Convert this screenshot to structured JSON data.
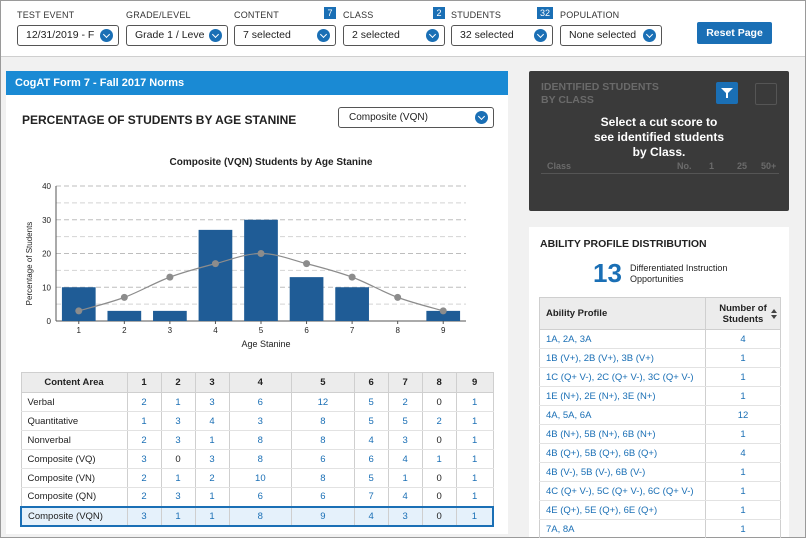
{
  "filters": [
    {
      "label": "TEST EVENT",
      "value": "12/31/2019 - F",
      "badge": ""
    },
    {
      "label": "GRADE/LEVEL",
      "value": "Grade 1 / Leve",
      "badge": ""
    },
    {
      "label": "CONTENT",
      "value": "7 selected",
      "badge": "7"
    },
    {
      "label": "CLASS",
      "value": "2 selected",
      "badge": "2"
    },
    {
      "label": "STUDENTS",
      "value": "32 selected",
      "badge": "32"
    },
    {
      "label": "POPULATION",
      "value": "None selected",
      "badge": ""
    }
  ],
  "reset_label": "Reset Page",
  "form_bar": "CogAT Form 7 - Fall 2017 Norms",
  "stanine_section": {
    "title": "PERCENTAGE OF STUDENTS BY AGE STANINE",
    "composite_select": "Composite (VQN)"
  },
  "chart_data": {
    "type": "bar",
    "title": "Composite (VQN) Students by Age Stanine",
    "xlabel": "Age Stanine",
    "ylabel": "Percentage of Students",
    "categories": [
      "1",
      "2",
      "3",
      "4",
      "5",
      "6",
      "7",
      "8",
      "9"
    ],
    "values": [
      10,
      3,
      3,
      27,
      30,
      13,
      10,
      0,
      3
    ],
    "curve": [
      3,
      7,
      13,
      17,
      20,
      17,
      13,
      7,
      3
    ],
    "ylim": [
      0,
      40
    ],
    "yticks": [
      "0",
      "10",
      "20",
      "30",
      "40"
    ],
    "grid": true,
    "bar_color": "#1f5c96",
    "curve_color": "#8c8c8c"
  },
  "content_table": {
    "header": "Content Area",
    "columns": [
      "1",
      "2",
      "3",
      "4",
      "5",
      "6",
      "7",
      "8",
      "9"
    ],
    "rows": [
      {
        "label": "Verbal",
        "values": [
          "2",
          "1",
          "3",
          "6",
          "12",
          "5",
          "2",
          "0",
          "1"
        ]
      },
      {
        "label": "Quantitative",
        "values": [
          "1",
          "3",
          "4",
          "3",
          "8",
          "5",
          "5",
          "2",
          "1"
        ]
      },
      {
        "label": "Nonverbal",
        "values": [
          "2",
          "3",
          "1",
          "8",
          "8",
          "4",
          "3",
          "0",
          "1"
        ]
      },
      {
        "label": "Composite (VQ)",
        "values": [
          "3",
          "0",
          "3",
          "8",
          "6",
          "6",
          "4",
          "1",
          "1"
        ]
      },
      {
        "label": "Composite (VN)",
        "values": [
          "2",
          "1",
          "2",
          "10",
          "8",
          "5",
          "1",
          "0",
          "1"
        ]
      },
      {
        "label": "Composite (QN)",
        "values": [
          "2",
          "3",
          "1",
          "6",
          "6",
          "7",
          "4",
          "0",
          "1"
        ]
      },
      {
        "label": "Composite (VQN)",
        "values": [
          "3",
          "1",
          "1",
          "8",
          "9",
          "4",
          "3",
          "0",
          "1"
        ]
      }
    ],
    "selected_row": 6
  },
  "identified": {
    "title_line1": "IDENTIFIED STUDENTS",
    "title_line2": "BY CLASS",
    "message_line1": "Select a cut score to",
    "message_line2": "see identified students",
    "message_line3": "by Class.",
    "ghost_class": "Class",
    "ghost_no": "No.",
    "ghost_1": "1",
    "ghost_25": "25",
    "ghost_50": "50+"
  },
  "ability": {
    "title": "ABILITY PROFILE DISTRIBUTION",
    "count": "13",
    "count_label_line1": "Differentiated Instruction",
    "count_label_line2": "Opportunities",
    "col_profile": "Ability Profile",
    "col_number_line1": "Number of",
    "col_number_line2": "Students",
    "rows": [
      {
        "profile": "1A, 2A, 3A",
        "count": "4"
      },
      {
        "profile": "1B (V+), 2B (V+), 3B (V+)",
        "count": "1"
      },
      {
        "profile": "1C (Q+ V-), 2C (Q+ V-), 3C (Q+ V-)",
        "count": "1"
      },
      {
        "profile": "1E (N+), 2E (N+), 3E (N+)",
        "count": "1"
      },
      {
        "profile": "4A, 5A, 6A",
        "count": "12"
      },
      {
        "profile": "4B (N+), 5B (N+), 6B (N+)",
        "count": "1"
      },
      {
        "profile": "4B (Q+), 5B (Q+), 6B (Q+)",
        "count": "4"
      },
      {
        "profile": "4B (V-), 5B (V-), 6B (V-)",
        "count": "1"
      },
      {
        "profile": "4C (Q+ V-), 5C (Q+ V-), 6C (Q+ V-)",
        "count": "1"
      },
      {
        "profile": "4E (Q+), 5E (Q+), 6E (Q+)",
        "count": "1"
      },
      {
        "profile": "7A, 8A",
        "count": "1"
      }
    ]
  }
}
